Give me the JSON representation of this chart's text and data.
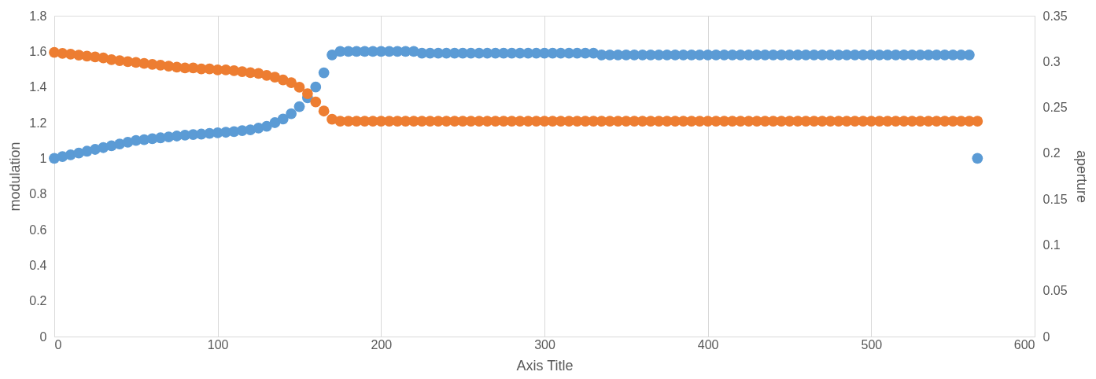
{
  "chart_data": {
    "type": "scatter",
    "xlabel": "Axis Title",
    "ylabel": "modulation",
    "y2label": "aperture",
    "x": [
      0,
      5,
      10,
      15,
      20,
      25,
      30,
      35,
      40,
      45,
      50,
      55,
      60,
      65,
      70,
      75,
      80,
      85,
      90,
      95,
      100,
      105,
      110,
      115,
      120,
      125,
      130,
      135,
      140,
      145,
      150,
      155,
      160,
      165,
      170,
      175,
      180,
      185,
      190,
      195,
      200,
      205,
      210,
      215,
      220,
      225,
      230,
      235,
      240,
      245,
      250,
      255,
      260,
      265,
      270,
      275,
      280,
      285,
      290,
      295,
      300,
      305,
      310,
      315,
      320,
      325,
      330,
      335,
      340,
      345,
      350,
      355,
      360,
      365,
      370,
      375,
      380,
      385,
      390,
      395,
      400,
      405,
      410,
      415,
      420,
      425,
      430,
      435,
      440,
      445,
      450,
      455,
      460,
      465,
      470,
      475,
      480,
      485,
      490,
      495,
      500,
      505,
      510,
      515,
      520,
      525,
      530,
      535,
      540,
      545,
      550,
      555,
      560,
      565
    ],
    "series": [
      {
        "color": "#5b9bd5",
        "axis": "y",
        "values": [
          1.0,
          1.01,
          1.02,
          1.03,
          1.04,
          1.05,
          1.06,
          1.07,
          1.08,
          1.09,
          1.1,
          1.105,
          1.11,
          1.115,
          1.12,
          1.125,
          1.13,
          1.133,
          1.136,
          1.14,
          1.143,
          1.146,
          1.15,
          1.155,
          1.16,
          1.17,
          1.18,
          1.2,
          1.22,
          1.25,
          1.29,
          1.34,
          1.4,
          1.48,
          1.58,
          1.6,
          1.6,
          1.6,
          1.6,
          1.6,
          1.6,
          1.6,
          1.6,
          1.6,
          1.6,
          1.59,
          1.59,
          1.59,
          1.59,
          1.59,
          1.59,
          1.59,
          1.59,
          1.59,
          1.59,
          1.59,
          1.59,
          1.59,
          1.59,
          1.59,
          1.59,
          1.59,
          1.59,
          1.59,
          1.59,
          1.59,
          1.59,
          1.58,
          1.58,
          1.58,
          1.58,
          1.58,
          1.58,
          1.58,
          1.58,
          1.58,
          1.58,
          1.58,
          1.58,
          1.58,
          1.58,
          1.58,
          1.58,
          1.58,
          1.58,
          1.58,
          1.58,
          1.58,
          1.58,
          1.58,
          1.58,
          1.58,
          1.58,
          1.58,
          1.58,
          1.58,
          1.58,
          1.58,
          1.58,
          1.58,
          1.58,
          1.58,
          1.58,
          1.58,
          1.58,
          1.58,
          1.58,
          1.58,
          1.58,
          1.58,
          1.58,
          1.58,
          1.58,
          1.0
        ]
      },
      {
        "color": "#ed7d31",
        "axis": "y2",
        "values": [
          0.31,
          0.309,
          0.308,
          0.307,
          0.306,
          0.305,
          0.304,
          0.302,
          0.301,
          0.3,
          0.299,
          0.298,
          0.297,
          0.296,
          0.295,
          0.294,
          0.293,
          0.293,
          0.292,
          0.292,
          0.291,
          0.291,
          0.29,
          0.289,
          0.288,
          0.287,
          0.285,
          0.283,
          0.28,
          0.277,
          0.272,
          0.265,
          0.256,
          0.246,
          0.237,
          0.235,
          0.235,
          0.235,
          0.235,
          0.235,
          0.235,
          0.235,
          0.235,
          0.235,
          0.235,
          0.235,
          0.235,
          0.235,
          0.235,
          0.235,
          0.235,
          0.235,
          0.235,
          0.235,
          0.235,
          0.235,
          0.235,
          0.235,
          0.235,
          0.235,
          0.235,
          0.235,
          0.235,
          0.235,
          0.235,
          0.235,
          0.235,
          0.235,
          0.235,
          0.235,
          0.235,
          0.235,
          0.235,
          0.235,
          0.235,
          0.235,
          0.235,
          0.235,
          0.235,
          0.235,
          0.235,
          0.235,
          0.235,
          0.235,
          0.235,
          0.235,
          0.235,
          0.235,
          0.235,
          0.235,
          0.235,
          0.235,
          0.235,
          0.235,
          0.235,
          0.235,
          0.235,
          0.235,
          0.235,
          0.235,
          0.235,
          0.235,
          0.235,
          0.235,
          0.235,
          0.235,
          0.235,
          0.235,
          0.235,
          0.235,
          0.235,
          0.235,
          0.235,
          0.235
        ]
      }
    ],
    "xlim": [
      0,
      600
    ],
    "xticks": [
      0,
      100,
      200,
      300,
      400,
      500,
      600
    ],
    "ylim": [
      0,
      1.8
    ],
    "yticks": [
      0,
      0.2,
      0.4,
      0.6,
      0.8,
      1,
      1.2,
      1.4,
      1.6,
      1.8
    ],
    "y2lim": [
      0,
      0.35
    ],
    "y2ticks": [
      0,
      0.05,
      0.1,
      0.15,
      0.2,
      0.25,
      0.3,
      0.35
    ],
    "grid": "x",
    "marker": "circle"
  }
}
